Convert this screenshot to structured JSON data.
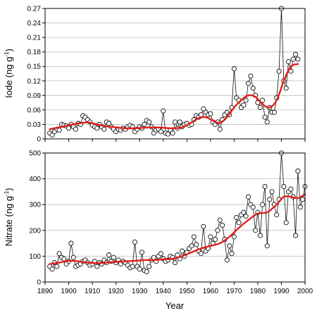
{
  "chart_data": [
    {
      "type": "line",
      "ylabel": "Iode (ng g⁻¹)",
      "ylabel_text": "Iode (ng g",
      "ylabel_sup": "-1",
      "ylabel_close": ")",
      "xlim": [
        1890,
        2000
      ],
      "ylim": [
        0,
        0.27
      ],
      "x_ticks": [
        1890,
        1900,
        1910,
        1920,
        1930,
        1940,
        1950,
        1960,
        1970,
        1980,
        1990,
        2000
      ],
      "y_ticks": [
        0,
        0.03,
        0.06,
        0.09,
        0.12,
        0.15,
        0.18,
        0.21,
        0.24,
        0.27
      ],
      "y_tick_labels": [
        "0",
        "0.03",
        "0.06",
        "0.09",
        "0.12",
        "0.15",
        "0.18",
        "0.21",
        "0.24",
        "0.27"
      ],
      "grid": true,
      "trend_color": "#e0201b",
      "series": [
        {
          "x": [
            1892,
            1893,
            1894,
            1895,
            1896,
            1897,
            1898,
            1899,
            1900,
            1901,
            1902,
            1903,
            1904,
            1905,
            1906,
            1907,
            1908,
            1909,
            1910,
            1911,
            1912,
            1913,
            1914,
            1915,
            1916,
            1917,
            1918,
            1919,
            1920,
            1921,
            1922,
            1923,
            1924,
            1925,
            1926,
            1927,
            1928,
            1929,
            1930,
            1931,
            1932,
            1933,
            1934,
            1935,
            1936,
            1937,
            1938,
            1939,
            1940,
            1941,
            1942,
            1943,
            1944,
            1945,
            1946,
            1947,
            1948,
            1949,
            1950,
            1951,
            1952,
            1953,
            1954,
            1955,
            1956,
            1957,
            1958,
            1959,
            1960,
            1961,
            1962,
            1963,
            1964,
            1965,
            1966,
            1967,
            1968,
            1969,
            1970,
            1971,
            1972,
            1973,
            1974,
            1975,
            1976,
            1977,
            1978,
            1979,
            1980,
            1981,
            1982,
            1983,
            1984,
            1985,
            1986,
            1987,
            1988,
            1989,
            1990,
            1991,
            1992,
            1993,
            1994,
            1995,
            1996,
            1997
          ],
          "y": [
            0.012,
            0.008,
            0.015,
            0.02,
            0.018,
            0.03,
            0.028,
            0.027,
            0.022,
            0.03,
            0.025,
            0.02,
            0.032,
            0.03,
            0.048,
            0.045,
            0.04,
            0.035,
            0.028,
            0.025,
            0.022,
            0.03,
            0.025,
            0.02,
            0.035,
            0.032,
            0.025,
            0.02,
            0.015,
            0.02,
            0.018,
            0.022,
            0.02,
            0.025,
            0.028,
            0.025,
            0.015,
            0.02,
            0.025,
            0.022,
            0.03,
            0.038,
            0.035,
            0.025,
            0.012,
            0.018,
            0.02,
            0.015,
            0.058,
            0.012,
            0.01,
            0.018,
            0.012,
            0.035,
            0.022,
            0.035,
            0.025,
            0.03,
            0.032,
            0.028,
            0.03,
            0.04,
            0.048,
            0.045,
            0.05,
            0.062,
            0.055,
            0.05,
            0.052,
            0.035,
            0.03,
            0.035,
            0.02,
            0.04,
            0.05,
            0.055,
            0.05,
            0.065,
            0.145,
            0.085,
            0.08,
            0.065,
            0.07,
            0.08,
            0.115,
            0.13,
            0.105,
            0.09,
            0.075,
            0.065,
            0.08,
            0.045,
            0.035,
            0.065,
            0.055,
            0.055,
            0.085,
            0.14,
            0.27,
            0.12,
            0.105,
            0.16,
            0.14,
            0.165,
            0.175,
            0.165
          ]
        }
      ],
      "trend": {
        "x": [
          1892,
          1896,
          1900,
          1904,
          1908,
          1912,
          1916,
          1920,
          1924,
          1928,
          1932,
          1936,
          1940,
          1944,
          1948,
          1952,
          1955,
          1958,
          1961,
          1964,
          1967,
          1970,
          1973,
          1976,
          1979,
          1982,
          1985,
          1988,
          1991,
          1994,
          1997
        ],
        "y": [
          0.02,
          0.024,
          0.028,
          0.032,
          0.034,
          0.03,
          0.026,
          0.024,
          0.022,
          0.022,
          0.023,
          0.024,
          0.023,
          0.022,
          0.024,
          0.034,
          0.043,
          0.045,
          0.038,
          0.033,
          0.045,
          0.065,
          0.08,
          0.09,
          0.087,
          0.072,
          0.065,
          0.08,
          0.12,
          0.15,
          0.155
        ]
      }
    },
    {
      "type": "line",
      "ylabel": "Nitrate (ng g⁻¹)",
      "ylabel_text": "Nitrate (ng g",
      "ylabel_sup": "-1",
      "ylabel_close": ")",
      "xlabel": "Year",
      "xlim": [
        1890,
        2000
      ],
      "ylim": [
        0,
        500
      ],
      "x_ticks": [
        1890,
        1900,
        1910,
        1920,
        1930,
        1940,
        1950,
        1960,
        1970,
        1980,
        1990,
        2000
      ],
      "x_tick_labels": [
        "1890",
        "1900",
        "1910",
        "1920",
        "1930",
        "1940",
        "1950",
        "1960",
        "1970",
        "1980",
        "1990",
        "2000"
      ],
      "y_ticks": [
        0,
        100,
        200,
        300,
        400,
        500
      ],
      "y_tick_labels": [
        "0",
        "100",
        "200",
        "300",
        "400",
        "500"
      ],
      "grid": true,
      "trend_color": "#e0201b",
      "series": [
        {
          "x": [
            1892,
            1893,
            1894,
            1895,
            1896,
            1897,
            1898,
            1899,
            1900,
            1901,
            1902,
            1903,
            1904,
            1905,
            1906,
            1907,
            1908,
            1909,
            1910,
            1911,
            1912,
            1913,
            1914,
            1915,
            1916,
            1917,
            1918,
            1919,
            1920,
            1921,
            1922,
            1923,
            1924,
            1925,
            1926,
            1927,
            1928,
            1929,
            1930,
            1931,
            1932,
            1933,
            1934,
            1935,
            1936,
            1937,
            1938,
            1939,
            1940,
            1941,
            1942,
            1943,
            1944,
            1945,
            1946,
            1947,
            1948,
            1949,
            1950,
            1951,
            1952,
            1953,
            1954,
            1955,
            1956,
            1957,
            1958,
            1959,
            1960,
            1961,
            1962,
            1963,
            1964,
            1965,
            1966,
            1967,
            1968,
            1969,
            1970,
            1971,
            1972,
            1973,
            1974,
            1975,
            1976,
            1977,
            1978,
            1979,
            1980,
            1981,
            1982,
            1983,
            1984,
            1985,
            1986,
            1987,
            1988,
            1989,
            1990,
            1991,
            1992,
            1993,
            1994,
            1995,
            1996,
            1997,
            1998,
            1999,
            2000
          ],
          "y": [
            60,
            50,
            75,
            60,
            110,
            95,
            90,
            70,
            80,
            150,
            95,
            60,
            65,
            70,
            80,
            85,
            75,
            65,
            70,
            80,
            60,
            75,
            70,
            85,
            75,
            105,
            80,
            95,
            75,
            85,
            70,
            80,
            75,
            65,
            55,
            60,
            155,
            60,
            50,
            115,
            45,
            40,
            60,
            85,
            95,
            80,
            100,
            110,
            90,
            80,
            85,
            100,
            95,
            75,
            105,
            90,
            120,
            100,
            115,
            130,
            140,
            175,
            145,
            120,
            110,
            215,
            120,
            130,
            175,
            150,
            165,
            200,
            240,
            220,
            165,
            85,
            140,
            110,
            175,
            250,
            230,
            260,
            270,
            255,
            330,
            300,
            290,
            200,
            270,
            180,
            300,
            370,
            140,
            320,
            350,
            300,
            260,
            320,
            500,
            370,
            230,
            350,
            360,
            330,
            180,
            430,
            290,
            320,
            370
          ]
        }
      ],
      "trend": {
        "x": [
          1892,
          1896,
          1900,
          1904,
          1908,
          1912,
          1916,
          1920,
          1924,
          1928,
          1932,
          1936,
          1940,
          1944,
          1948,
          1952,
          1956,
          1960,
          1964,
          1968,
          1972,
          1976,
          1980,
          1984,
          1988,
          1991,
          1994,
          1997,
          2000
        ],
        "y": [
          70,
          75,
          82,
          80,
          75,
          73,
          75,
          78,
          80,
          82,
          85,
          85,
          88,
          90,
          100,
          115,
          130,
          140,
          150,
          175,
          210,
          240,
          265,
          270,
          300,
          330,
          330,
          325,
          340
        ]
      }
    }
  ]
}
